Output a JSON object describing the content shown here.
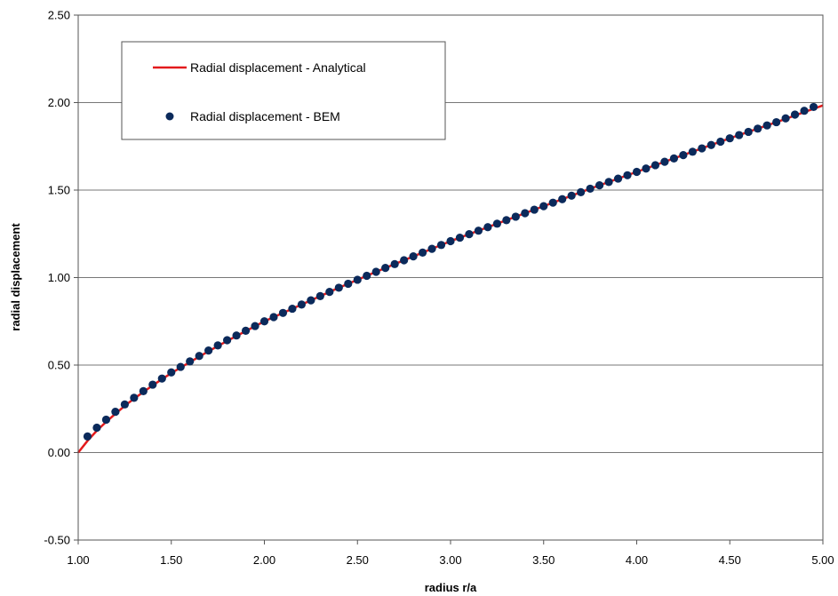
{
  "chart_data": {
    "type": "line",
    "title": "",
    "xlabel": "radius r/a",
    "ylabel": "radial displacement",
    "xlim": [
      1.0,
      5.0
    ],
    "ylim": [
      -0.5,
      2.5
    ],
    "x_ticks": [
      1.0,
      1.5,
      2.0,
      2.5,
      3.0,
      3.5,
      4.0,
      4.5,
      5.0
    ],
    "x_tick_labels": [
      "1.00",
      "1.50",
      "2.00",
      "2.50",
      "3.00",
      "3.50",
      "4.00",
      "4.50",
      "5.00"
    ],
    "y_ticks": [
      -0.5,
      0.0,
      0.5,
      1.0,
      1.5,
      2.0,
      2.5
    ],
    "y_tick_labels": [
      "-0.50",
      "0.00",
      "0.50",
      "1.00",
      "1.50",
      "2.00",
      "2.50"
    ],
    "grid": "horizontal",
    "legend_position": "top-left",
    "series": [
      {
        "name": "Radial displacement - Analytical",
        "style": "line",
        "color": "#e31a1c",
        "x": [
          1.0,
          1.05,
          1.1,
          1.15,
          1.2,
          1.25,
          1.3,
          1.35,
          1.4,
          1.5,
          1.6,
          1.7,
          1.8,
          1.9,
          2.0,
          2.2,
          2.4,
          2.6,
          2.8,
          3.0,
          3.25,
          3.5,
          3.75,
          4.0,
          4.25,
          4.5,
          4.75,
          5.0
        ],
        "y": [
          0.0,
          0.067,
          0.125,
          0.175,
          0.222,
          0.267,
          0.308,
          0.346,
          0.384,
          0.454,
          0.517,
          0.579,
          0.638,
          0.694,
          0.75,
          0.846,
          0.942,
          1.033,
          1.121,
          1.208,
          1.308,
          1.408,
          1.508,
          1.604,
          1.7,
          1.796,
          1.888,
          1.984
        ]
      },
      {
        "name": "Radial displacement - BEM",
        "style": "marker",
        "color": "#0b2a5b",
        "x_start": 1.05,
        "x_end": 4.95,
        "point_count": 79,
        "x": [
          1.05,
          1.1,
          1.15,
          1.2,
          1.25,
          1.3,
          1.35,
          1.4,
          1.5,
          1.6,
          1.7,
          1.8,
          1.9,
          2.0,
          2.2,
          2.4,
          2.6,
          2.8,
          3.0,
          3.25,
          3.5,
          3.75,
          4.0,
          4.25,
          4.5,
          4.75,
          4.95
        ],
        "y": [
          0.092,
          0.142,
          0.188,
          0.233,
          0.275,
          0.313,
          0.351,
          0.388,
          0.458,
          0.521,
          0.583,
          0.642,
          0.696,
          0.75,
          0.846,
          0.942,
          1.033,
          1.121,
          1.208,
          1.308,
          1.408,
          1.508,
          1.604,
          1.7,
          1.796,
          1.888,
          1.975
        ]
      }
    ]
  }
}
